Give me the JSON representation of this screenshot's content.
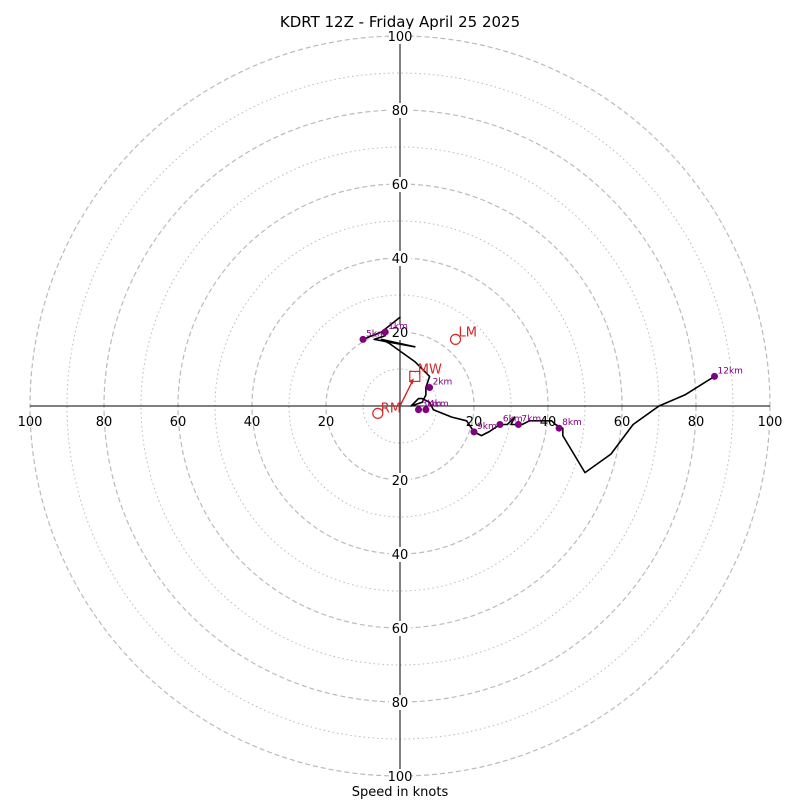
{
  "chart_data": {
    "type": "hodograph",
    "title": "KDRT 12Z - Friday April 25 2025",
    "xlabel": "Speed in knots",
    "units": "knots",
    "ring_labels_dashed": [
      20,
      40,
      60,
      80,
      100
    ],
    "rings_dotted": [
      10,
      30,
      50,
      70,
      90
    ],
    "axis_range": [
      -100,
      100
    ],
    "grid": true,
    "colors": {
      "trace": "#000000",
      "height_marker": "#800080",
      "storm_motion": "#d62728",
      "grid": "#bbbbbb"
    },
    "hodograph_trace": [
      [
        -10,
        18
      ],
      [
        -5,
        20
      ],
      [
        0,
        24
      ],
      [
        -5,
        20
      ],
      [
        -4,
        19
      ],
      [
        -7,
        18
      ],
      [
        4,
        16
      ],
      [
        -5,
        18
      ],
      [
        -3,
        17
      ],
      [
        4,
        12
      ],
      [
        8,
        8
      ],
      [
        7,
        5
      ],
      [
        7,
        3
      ],
      [
        6,
        1
      ],
      [
        3,
        0
      ],
      [
        5,
        2
      ],
      [
        6,
        2
      ],
      [
        8,
        1
      ],
      [
        9,
        -1
      ],
      [
        14,
        -3
      ],
      [
        18,
        -4
      ],
      [
        20,
        -7
      ],
      [
        22,
        -8
      ],
      [
        24,
        -7
      ],
      [
        27,
        -5
      ],
      [
        29,
        -5
      ],
      [
        31,
        -3
      ],
      [
        30,
        -5
      ],
      [
        33,
        -5
      ],
      [
        35,
        -4
      ],
      [
        38,
        -4
      ],
      [
        40,
        -4
      ],
      [
        41,
        -4
      ],
      [
        42,
        -5
      ],
      [
        44,
        -6
      ],
      [
        44,
        -8
      ],
      [
        50,
        -18
      ],
      [
        57,
        -13
      ],
      [
        63,
        -5
      ],
      [
        70,
        0
      ],
      [
        77,
        3
      ],
      [
        85,
        8
      ]
    ],
    "height_markers": [
      {
        "label": "1km",
        "u": -4,
        "v": 20
      },
      {
        "label": "2km",
        "u": 8,
        "v": 5
      },
      {
        "label": "3km",
        "u": 5,
        "v": -1
      },
      {
        "label": "4km",
        "u": 7,
        "v": -1
      },
      {
        "label": "5km",
        "u": -10,
        "v": 18
      },
      {
        "label": "6km",
        "u": 27,
        "v": -5
      },
      {
        "label": "7km",
        "u": 32,
        "v": -5
      },
      {
        "label": "8km",
        "u": 43,
        "v": -6
      },
      {
        "label": "9km",
        "u": 20,
        "v": -7
      },
      {
        "label": "12km",
        "u": 85,
        "v": 8
      }
    ],
    "storm_motion": {
      "MW": {
        "label": "MW",
        "u": 4,
        "v": 8,
        "marker": "square"
      },
      "LM": {
        "label": "LM",
        "u": 15,
        "v": 18,
        "marker": "circle"
      },
      "RM": {
        "label": "RM",
        "u": -6,
        "v": -2,
        "marker": "circle"
      }
    },
    "sfc_point": [
      0,
      0
    ]
  }
}
